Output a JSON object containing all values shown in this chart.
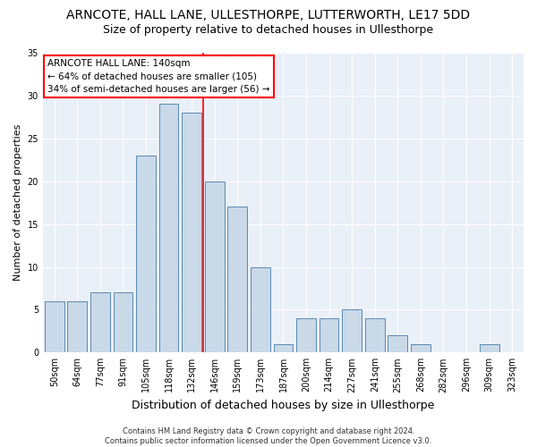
{
  "title_line1": "ARNCOTE, HALL LANE, ULLESTHORPE, LUTTERWORTH, LE17 5DD",
  "title_line2": "Size of property relative to detached houses in Ullesthorpe",
  "xlabel": "Distribution of detached houses by size in Ullesthorpe",
  "ylabel": "Number of detached properties",
  "categories": [
    "50sqm",
    "64sqm",
    "77sqm",
    "91sqm",
    "105sqm",
    "118sqm",
    "132sqm",
    "146sqm",
    "159sqm",
    "173sqm",
    "187sqm",
    "200sqm",
    "214sqm",
    "227sqm",
    "241sqm",
    "255sqm",
    "268sqm",
    "282sqm",
    "296sqm",
    "309sqm",
    "323sqm"
  ],
  "values": [
    6,
    6,
    7,
    7,
    23,
    29,
    28,
    20,
    17,
    10,
    1,
    4,
    4,
    5,
    4,
    2,
    1,
    0,
    0,
    1,
    0
  ],
  "bar_color": "#c9d9e8",
  "bar_edge_color": "#5a8ab0",
  "vline_color": "red",
  "vline_x": 6.5,
  "annotation_line1": "ARNCOTE HALL LANE: 140sqm",
  "annotation_line2": "← 64% of detached houses are smaller (105)",
  "annotation_line3": "34% of semi-detached houses are larger (56) →",
  "annotation_box_color": "white",
  "annotation_box_edge": "red",
  "ylim": [
    0,
    35
  ],
  "yticks": [
    0,
    5,
    10,
    15,
    20,
    25,
    30,
    35
  ],
  "bg_color": "#eaf0f8",
  "grid_color": "white",
  "footer": "Contains HM Land Registry data © Crown copyright and database right 2024.\nContains public sector information licensed under the Open Government Licence v3.0.",
  "title_fontsize": 10,
  "subtitle_fontsize": 9,
  "tick_fontsize": 7,
  "ylabel_fontsize": 8,
  "xlabel_fontsize": 9,
  "bar_width": 0.85
}
